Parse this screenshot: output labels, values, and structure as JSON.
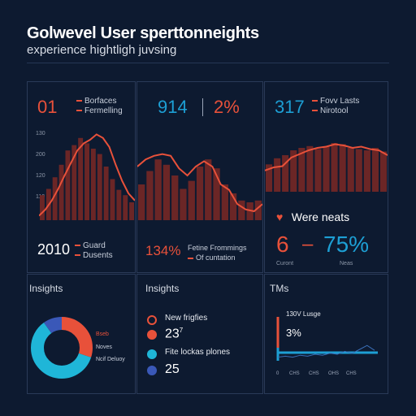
{
  "header": {
    "title": "Golwevel User sperttonneights",
    "subtitle": "experience hightligh juvsing"
  },
  "panel1": {
    "kpi_left": "01",
    "legend": [
      "Borfaces",
      "Fermelling"
    ],
    "y_labels": [
      "130",
      "200",
      "120",
      "110"
    ],
    "bottom_value": "2010",
    "bottom_legend": [
      "Guard",
      "Dusents"
    ]
  },
  "panel2": {
    "kpi_left": "914",
    "kpi_right": "2%",
    "bottom_value": "134%",
    "bottom_legend": [
      "Fetine Frommings",
      "Of cuntation"
    ]
  },
  "panel3": {
    "kpi_left": "317",
    "legend": [
      "Fovv Lasts",
      "Nirotool"
    ],
    "heart_label": "Were neats",
    "kpi_a": "6",
    "kpi_dash": "–",
    "kpi_b": "75%",
    "sub_a": "Curont",
    "sub_b": "Neas"
  },
  "insights1": {
    "heading": "Insights",
    "donut_labels": [
      "Bseb",
      "Noves",
      "Ncif Deluoy"
    ],
    "donut_shares": [
      0.3,
      0.6,
      0.1
    ]
  },
  "insights2": {
    "heading": "Insights",
    "items": [
      {
        "label": "New frigfies",
        "value": "23"
      },
      {
        "label": "Fite lockas plones",
        "value": "25"
      }
    ],
    "superscript": "7"
  },
  "trends": {
    "heading": "TMs",
    "chart_label": "130V Lusge",
    "value": "3%",
    "x_ticks": [
      "0",
      "CHS",
      "CHS",
      "OHS",
      "CHS"
    ]
  },
  "colors": {
    "background": "#0d1a30",
    "accent_red": "#e8513a",
    "accent_blue": "#1d9fd4",
    "bar_dark_red": "#6b2626",
    "accent_navy": "#3a58b8"
  },
  "icons": [
    "heart-icon"
  ],
  "chart_data": [
    {
      "type": "bar",
      "values": [
        28,
        35,
        48,
        62,
        78,
        84,
        92,
        86,
        80,
        74,
        60,
        46,
        34,
        28,
        20
      ],
      "line": [
        5,
        12,
        22,
        35,
        50,
        64,
        78,
        86,
        90,
        96,
        92,
        82,
        62,
        44,
        30,
        22
      ],
      "ylim": [
        0,
        100
      ]
    },
    {
      "type": "bar",
      "values": [
        40,
        55,
        68,
        62,
        50,
        35,
        44,
        60,
        68,
        58,
        40,
        30,
        22,
        20,
        22
      ],
      "line": [
        60,
        68,
        72,
        74,
        72,
        58,
        50,
        60,
        66,
        60,
        40,
        34,
        18,
        12,
        10,
        18
      ],
      "ylim": [
        0,
        100
      ]
    },
    {
      "type": "bar",
      "values": [
        45,
        55,
        60,
        68,
        72,
        75,
        70,
        74,
        80,
        78,
        72,
        70,
        68,
        72,
        66
      ],
      "line": [
        35,
        40,
        42,
        56,
        62,
        68,
        72,
        74,
        78,
        76,
        72,
        74,
        70,
        68,
        60
      ],
      "ylim": [
        0,
        100
      ]
    },
    {
      "type": "line",
      "series": [
        {
          "values": [
            2,
            3,
            2,
            4,
            3,
            5,
            4,
            6,
            5,
            8,
            6,
            10,
            14,
            9
          ]
        }
      ],
      "ylim": [
        0,
        20
      ]
    }
  ]
}
